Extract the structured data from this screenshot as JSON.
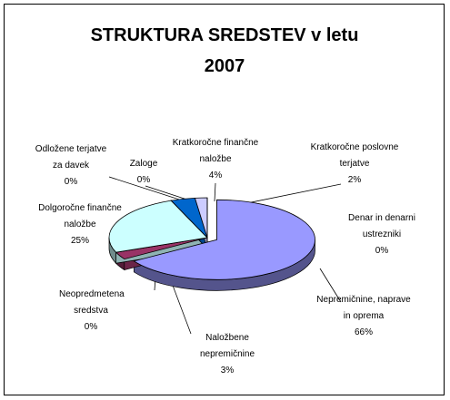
{
  "chart_data": {
    "type": "pie",
    "title": "STRUKTURA SREDSTEV v letu 2007",
    "categories": [
      "Nepremičnine, naprave in oprema",
      "Naložbene nepremičnine",
      "Neopredmetena sredstva",
      "Dolgoročne finančne naložbe",
      "Odložene terjatve za davek",
      "Zaloge",
      "Kratkoročne finančne naložbe",
      "Kratkoročne poslovne terjatve",
      "Denar in denarni ustrezniki"
    ],
    "values": [
      66,
      3,
      0,
      25,
      0,
      0,
      4,
      2,
      0
    ],
    "value_labels": [
      "66%",
      "3%",
      "0%",
      "25%",
      "0%",
      "0%",
      "4%",
      "2%",
      "0%"
    ],
    "colors": [
      "#9999ff",
      "#993366",
      "#ffffcc",
      "#ccffff",
      "#660066",
      "#ff8080",
      "#0066cc",
      "#ccccff",
      "#000080"
    ]
  }
}
